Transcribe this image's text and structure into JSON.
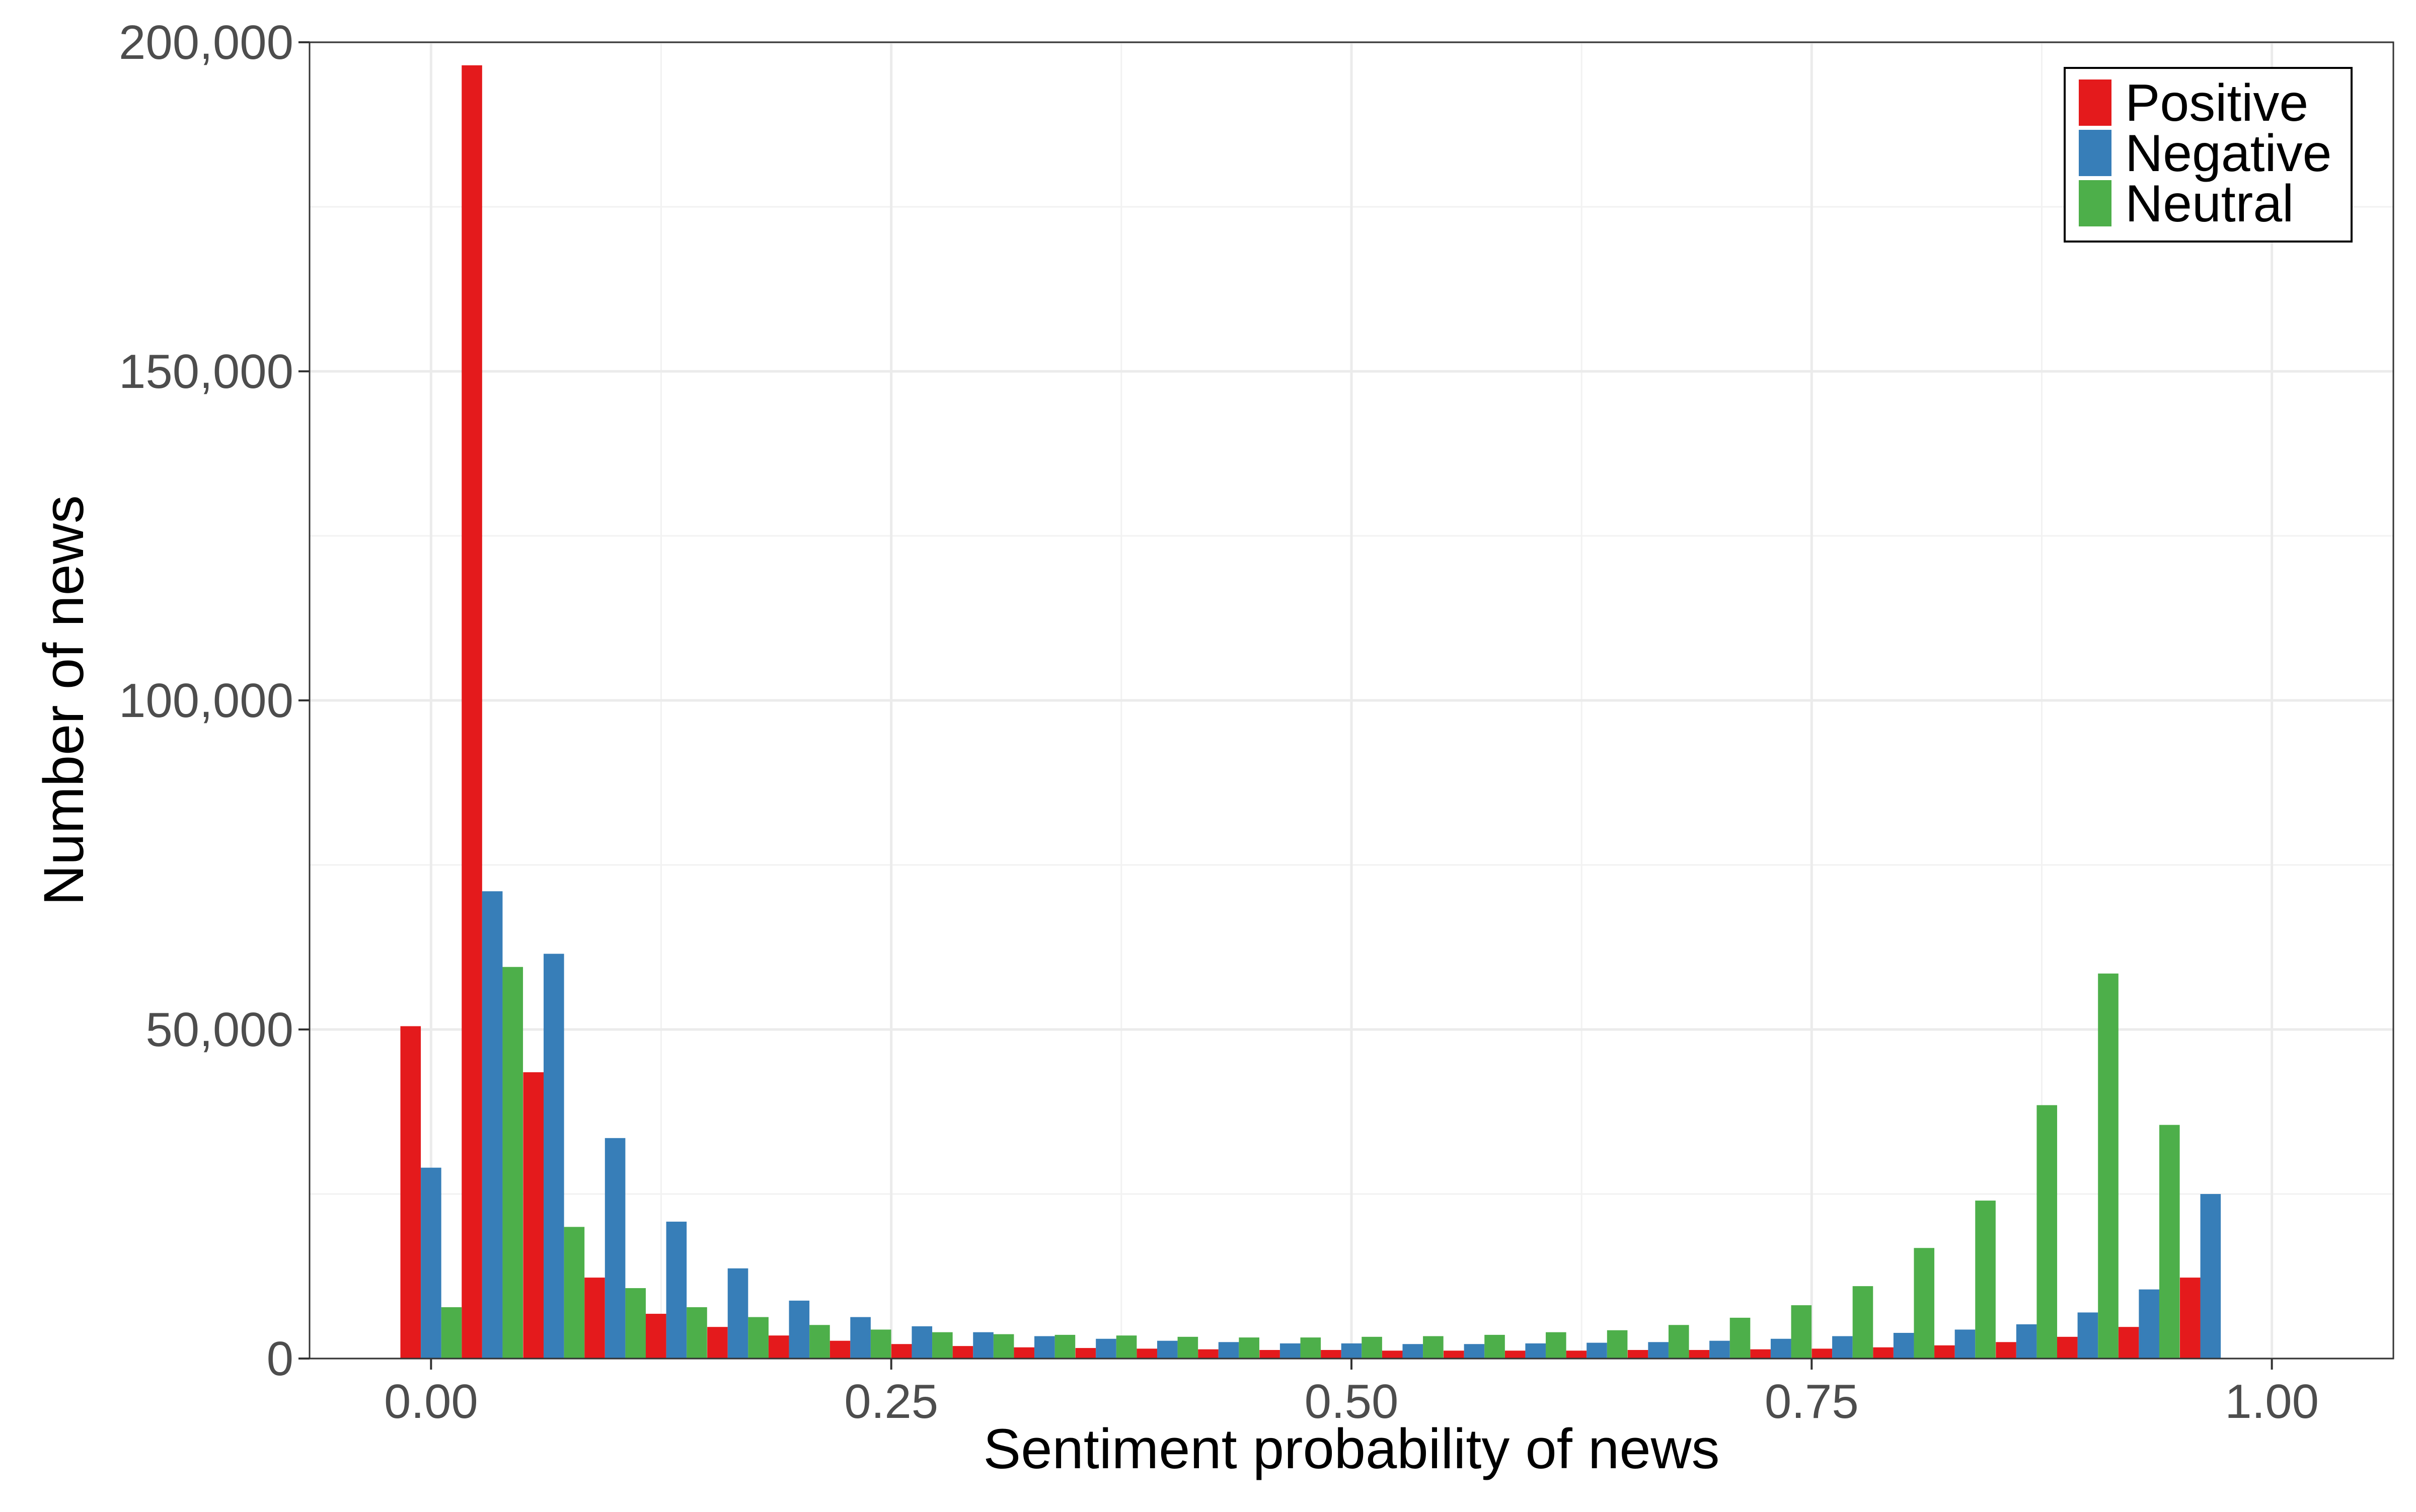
{
  "chart_data": {
    "type": "bar",
    "xlabel": "Sentiment probability of news",
    "ylabel": "Number of news",
    "xlim": [
      -0.066,
      1.066
    ],
    "ylim": [
      0,
      200000
    ],
    "x_ticks": [
      0.0,
      0.25,
      0.5,
      0.75,
      1.0
    ],
    "x_tick_labels": [
      "0.00",
      "0.25",
      "0.50",
      "0.75",
      "1.00"
    ],
    "y_ticks": [
      0,
      50000,
      100000,
      150000,
      200000
    ],
    "y_tick_labels": [
      "0",
      "50,000",
      "100,000",
      "150,000",
      "200,000"
    ],
    "grid": true,
    "legend_position": "top-right",
    "x": [
      0.0,
      0.0333,
      0.0667,
      0.1,
      0.1333,
      0.1667,
      0.2,
      0.2333,
      0.2667,
      0.3,
      0.3333,
      0.3667,
      0.4,
      0.4333,
      0.4667,
      0.5,
      0.5333,
      0.5667,
      0.6,
      0.6333,
      0.6667,
      0.7,
      0.7333,
      0.7667,
      0.8,
      0.8333,
      0.8667,
      0.9,
      0.9333,
      0.9667
    ],
    "series": [
      {
        "name": "Positive",
        "color": "#e41a1c",
        "values": [
          50500,
          196500,
          43500,
          12300,
          6800,
          4800,
          3500,
          2700,
          2200,
          1900,
          1700,
          1600,
          1500,
          1400,
          1300,
          1300,
          1200,
          1200,
          1200,
          1200,
          1300,
          1300,
          1400,
          1500,
          1700,
          2000,
          2500,
          3300,
          4800,
          12300
        ]
      },
      {
        "name": "Negative",
        "color": "#377eb8",
        "values": [
          29000,
          71000,
          61500,
          33500,
          20800,
          13700,
          8800,
          6300,
          4900,
          4000,
          3400,
          3000,
          2700,
          2500,
          2300,
          2300,
          2200,
          2200,
          2300,
          2400,
          2500,
          2700,
          3000,
          3400,
          3900,
          4400,
          5200,
          7000,
          10500,
          25000
        ]
      },
      {
        "name": "Neutral",
        "color": "#4daf4a",
        "values": [
          7800,
          59500,
          20000,
          10700,
          7800,
          6300,
          5100,
          4400,
          4000,
          3700,
          3600,
          3500,
          3300,
          3200,
          3200,
          3300,
          3400,
          3600,
          4000,
          4300,
          5100,
          6200,
          8100,
          11000,
          16800,
          24000,
          38500,
          58500,
          35500,
          0
        ]
      }
    ]
  }
}
